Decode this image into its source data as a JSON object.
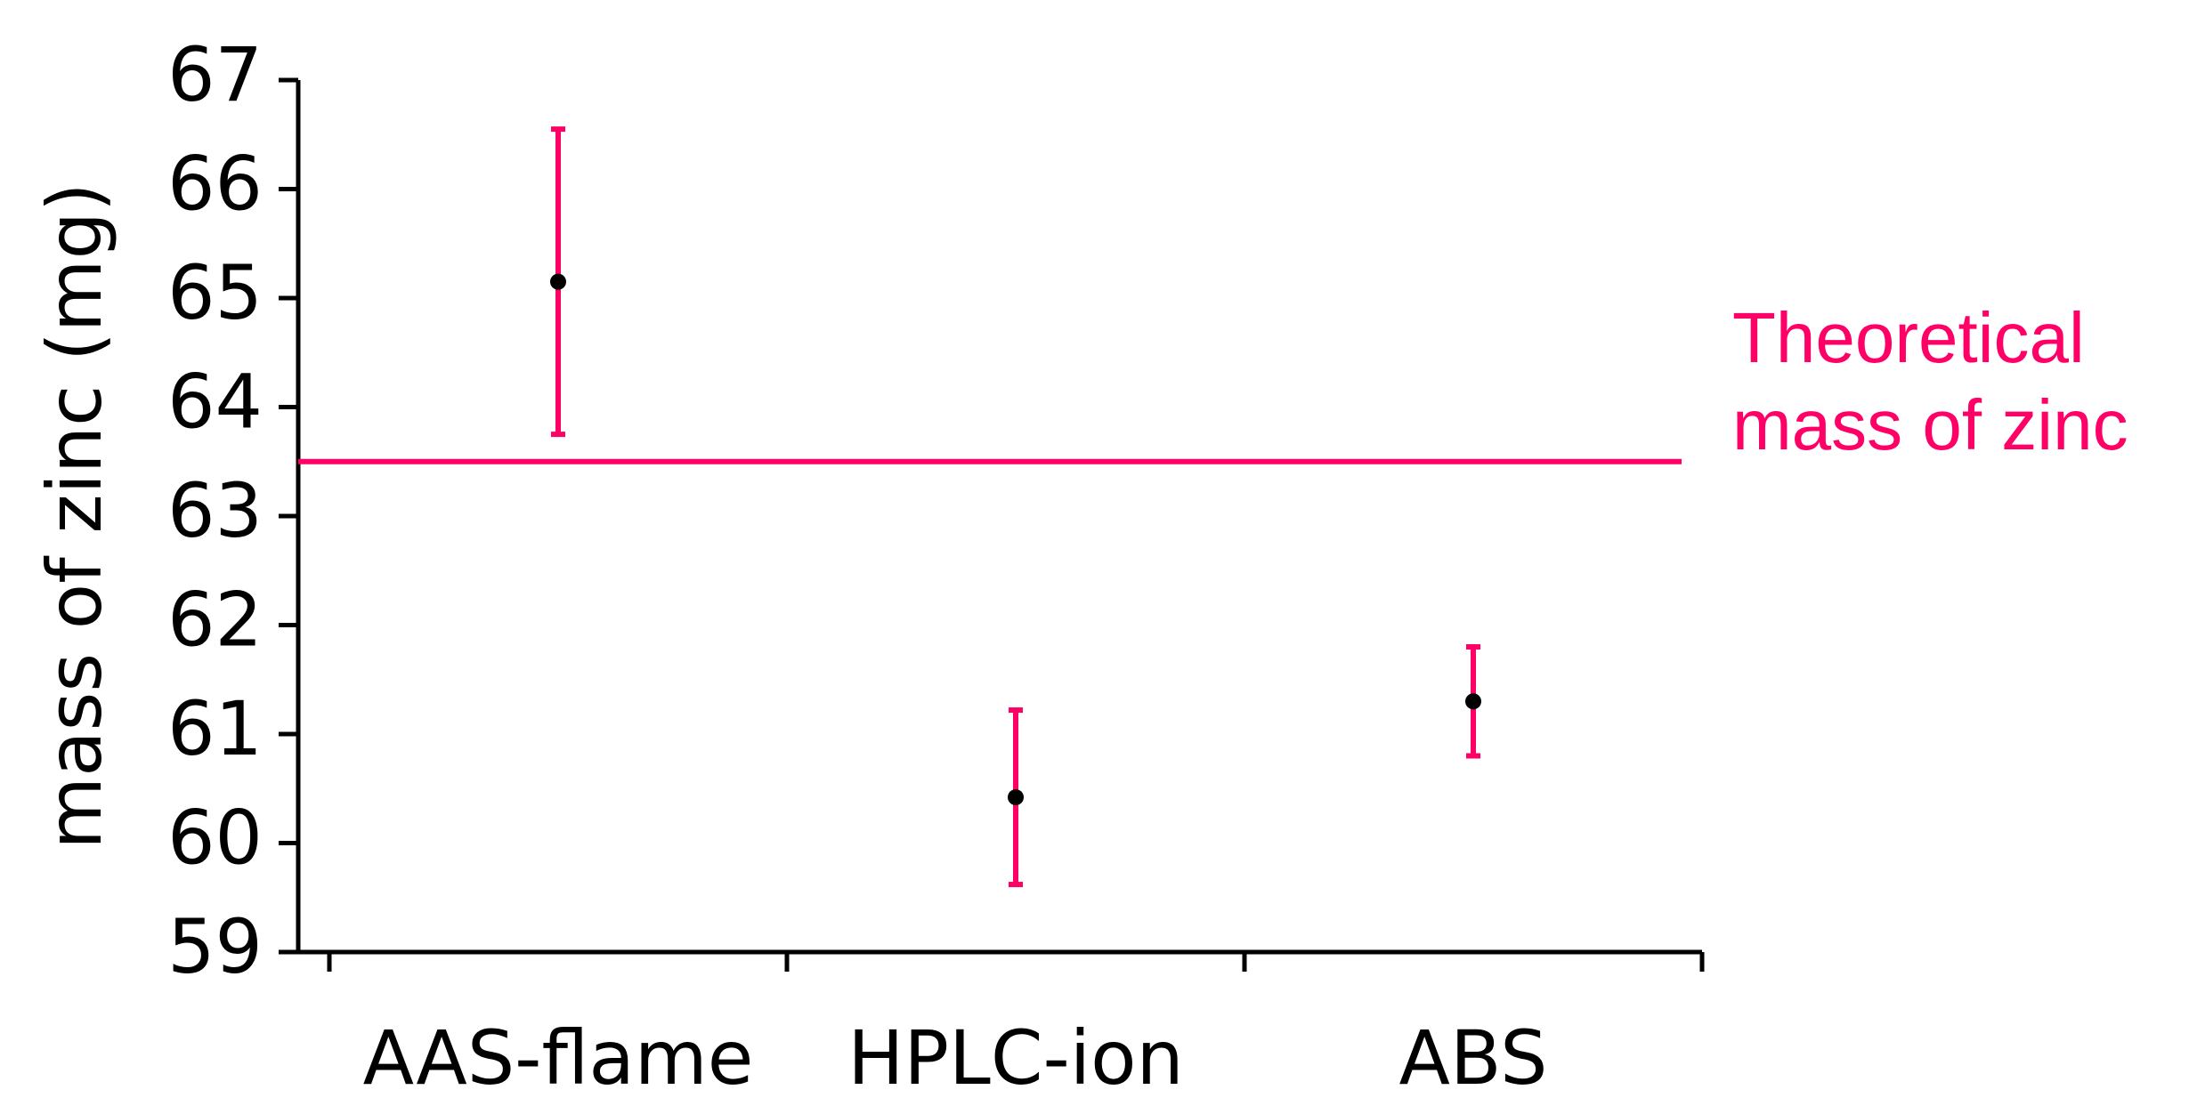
{
  "chart_data": {
    "type": "errorbar",
    "y_label": "mass of zinc (mg)",
    "categories": [
      "AAS-flame",
      "HPLC-ion",
      "ABS"
    ],
    "series": [
      {
        "color": "#ff0066",
        "point_color": "#000000",
        "values": [
          65.15,
          60.42,
          61.3
        ],
        "errors": [
          1.4,
          0.8,
          0.5
        ]
      }
    ],
    "reference_line": {
      "value": 63.5,
      "color": "#ff0066",
      "label": [
        "Theoretical",
        "mass of zinc"
      ]
    },
    "ylim": [
      59,
      67
    ],
    "yticks": [
      59,
      60,
      61,
      62,
      63,
      64,
      65,
      66,
      67
    ]
  }
}
